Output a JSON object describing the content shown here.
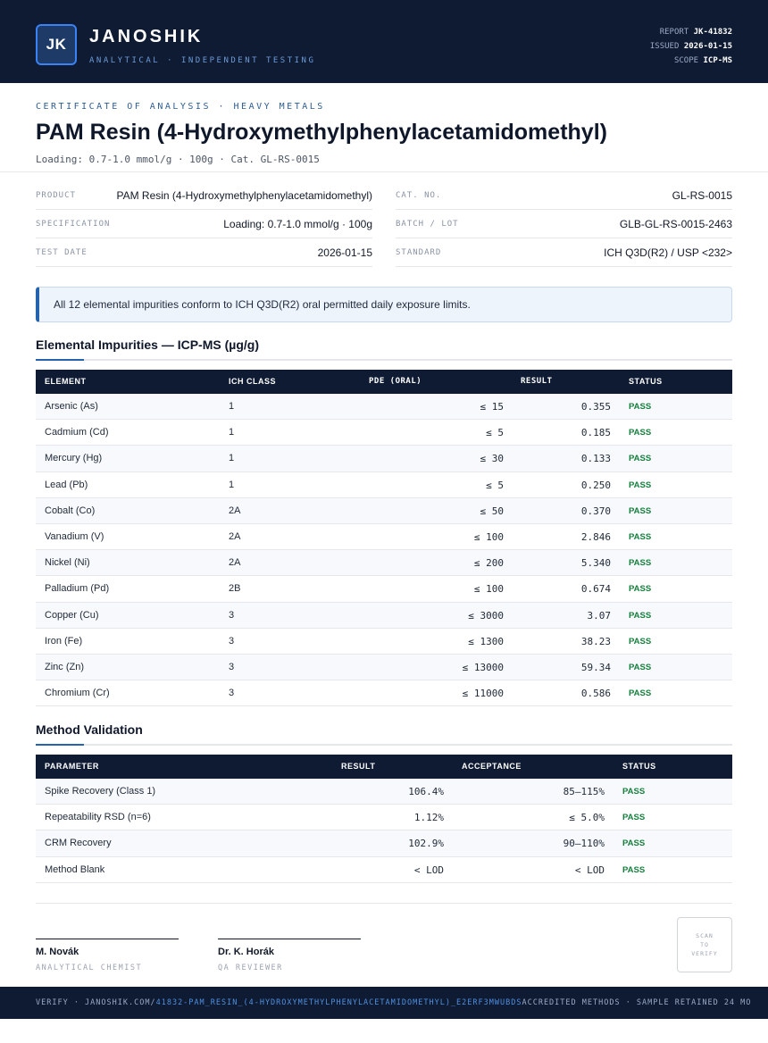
{
  "header": {
    "logo_text": "JK",
    "brand": "JANOSHIK",
    "tagline": "ANALYTICAL · INDEPENDENT TESTING",
    "meta": [
      {
        "label": "REPORT",
        "value": "JK-41832"
      },
      {
        "label": "ISSUED",
        "value": "2026-01-15"
      },
      {
        "label": "SCOPE",
        "value": "ICP-MS"
      }
    ]
  },
  "doc": {
    "kicker": "CERTIFICATE OF ANALYSIS · HEAVY METALS",
    "title": "PAM Resin (4-Hydroxymethylphenylacetamidomethyl)",
    "subtitle": "Loading: 0.7-1.0 mmol/g · 100g  ·  Cat. GL-RS-0015"
  },
  "info": {
    "product": {
      "label": "PRODUCT",
      "value": "PAM Resin (4-Hydroxymethylphenylacetamidomethyl)"
    },
    "specification": {
      "label": "SPECIFICATION",
      "value": "Loading: 0.7-1.0 mmol/g · 100g"
    },
    "test_date": {
      "label": "TEST DATE",
      "value": "2026-01-15"
    },
    "cat_no": {
      "label": "CAT. NO.",
      "value": "GL-RS-0015"
    },
    "batch": {
      "label": "BATCH / LOT",
      "value": "GLB-GL-RS-0015-2463"
    },
    "standard": {
      "label": "STANDARD",
      "value": "ICH Q3D(R2) / USP <232>"
    }
  },
  "notice": "All 12 elemental impurities conform to ICH Q3D(R2) oral permitted daily exposure limits.",
  "impurities": {
    "title": "Elemental Impurities — ICP-MS (µg/g)",
    "headers": {
      "element": "ELEMENT",
      "ich_class": "ICH CLASS",
      "pde": "PDE (ORAL)",
      "result": "RESULT",
      "status": "STATUS"
    },
    "rows": [
      {
        "element": "Arsenic (As)",
        "ich_class": "1",
        "pde": "≤ 15",
        "result": "0.355",
        "status": "PASS"
      },
      {
        "element": "Cadmium (Cd)",
        "ich_class": "1",
        "pde": "≤ 5",
        "result": "0.185",
        "status": "PASS"
      },
      {
        "element": "Mercury (Hg)",
        "ich_class": "1",
        "pde": "≤ 30",
        "result": "0.133",
        "status": "PASS"
      },
      {
        "element": "Lead (Pb)",
        "ich_class": "1",
        "pde": "≤ 5",
        "result": "0.250",
        "status": "PASS"
      },
      {
        "element": "Cobalt (Co)",
        "ich_class": "2A",
        "pde": "≤ 50",
        "result": "0.370",
        "status": "PASS"
      },
      {
        "element": "Vanadium (V)",
        "ich_class": "2A",
        "pde": "≤ 100",
        "result": "2.846",
        "status": "PASS"
      },
      {
        "element": "Nickel (Ni)",
        "ich_class": "2A",
        "pde": "≤ 200",
        "result": "5.340",
        "status": "PASS"
      },
      {
        "element": "Palladium (Pd)",
        "ich_class": "2B",
        "pde": "≤ 100",
        "result": "0.674",
        "status": "PASS"
      },
      {
        "element": "Copper (Cu)",
        "ich_class": "3",
        "pde": "≤ 3000",
        "result": "3.07",
        "status": "PASS"
      },
      {
        "element": "Iron (Fe)",
        "ich_class": "3",
        "pde": "≤ 1300",
        "result": "38.23",
        "status": "PASS"
      },
      {
        "element": "Zinc (Zn)",
        "ich_class": "3",
        "pde": "≤ 13000",
        "result": "59.34",
        "status": "PASS"
      },
      {
        "element": "Chromium (Cr)",
        "ich_class": "3",
        "pde": "≤ 11000",
        "result": "0.586",
        "status": "PASS"
      }
    ]
  },
  "validation": {
    "title": "Method Validation",
    "headers": {
      "parameter": "PARAMETER",
      "result": "RESULT",
      "acceptance": "ACCEPTANCE",
      "status": "STATUS"
    },
    "rows": [
      {
        "parameter": "Spike Recovery (Class 1)",
        "result": "106.4%",
        "acceptance": "85–115%",
        "status": "PASS"
      },
      {
        "parameter": "Repeatability RSD (n=6)",
        "result": "1.12%",
        "acceptance": "≤ 5.0%",
        "status": "PASS"
      },
      {
        "parameter": "CRM Recovery",
        "result": "102.9%",
        "acceptance": "90–110%",
        "status": "PASS"
      },
      {
        "parameter": "Method Blank",
        "result": "< LOD",
        "acceptance": "< LOD",
        "status": "PASS"
      }
    ]
  },
  "signatures": [
    {
      "name": "M. Novák",
      "role": "ANALYTICAL CHEMIST"
    },
    {
      "name": "Dr. K. Horák",
      "role": "QA REVIEWER"
    }
  ],
  "qr": {
    "line1": "SCAN",
    "line2": "TO",
    "line3": "VERIFY"
  },
  "footer": {
    "prefix": "VERIFY · JANOSHIK.COM/",
    "link": "41832-PAM_RESIN_(4-HYDROXYMETHYLPHENYLACETAMIDOMETHYL)_E2ERF3MWUBDS",
    "suffix": " ACCREDITED METHODS · SAMPLE RETAINED 24 MO"
  }
}
